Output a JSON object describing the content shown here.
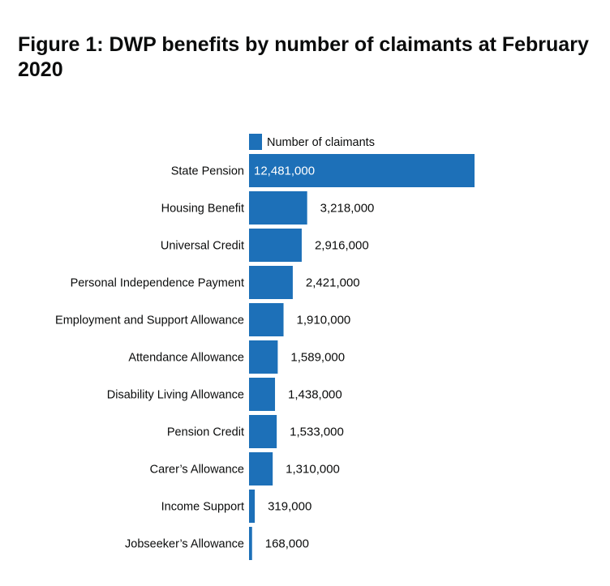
{
  "chart_data": {
    "type": "bar",
    "orientation": "horizontal",
    "title": "Figure 1: DWP benefits by number of claimants at February 2020",
    "categories": [
      "State Pension",
      "Housing Benefit",
      "Universal Credit",
      "Personal Independence Payment",
      "Employment and Support Allowance",
      "Attendance Allowance",
      "Disability Living Allowance",
      "Pension Credit",
      "Carer’s Allowance",
      "Income Support",
      "Jobseeker’s Allowance"
    ],
    "series": [
      {
        "name": "Number of claimants",
        "color": "#1d70b8",
        "values": [
          12481000,
          3218000,
          2916000,
          2421000,
          1910000,
          1589000,
          1438000,
          1533000,
          1310000,
          319000,
          168000
        ],
        "value_labels": [
          "12,481,000",
          "3,218,000",
          "2,916,000",
          "2,421,000",
          "1,910,000",
          "1,589,000",
          "1,438,000",
          "1,533,000",
          "1,310,000",
          "319,000",
          "168,000"
        ]
      }
    ],
    "xlim": [
      0,
      12481000
    ],
    "grid": false,
    "legend": "top"
  }
}
